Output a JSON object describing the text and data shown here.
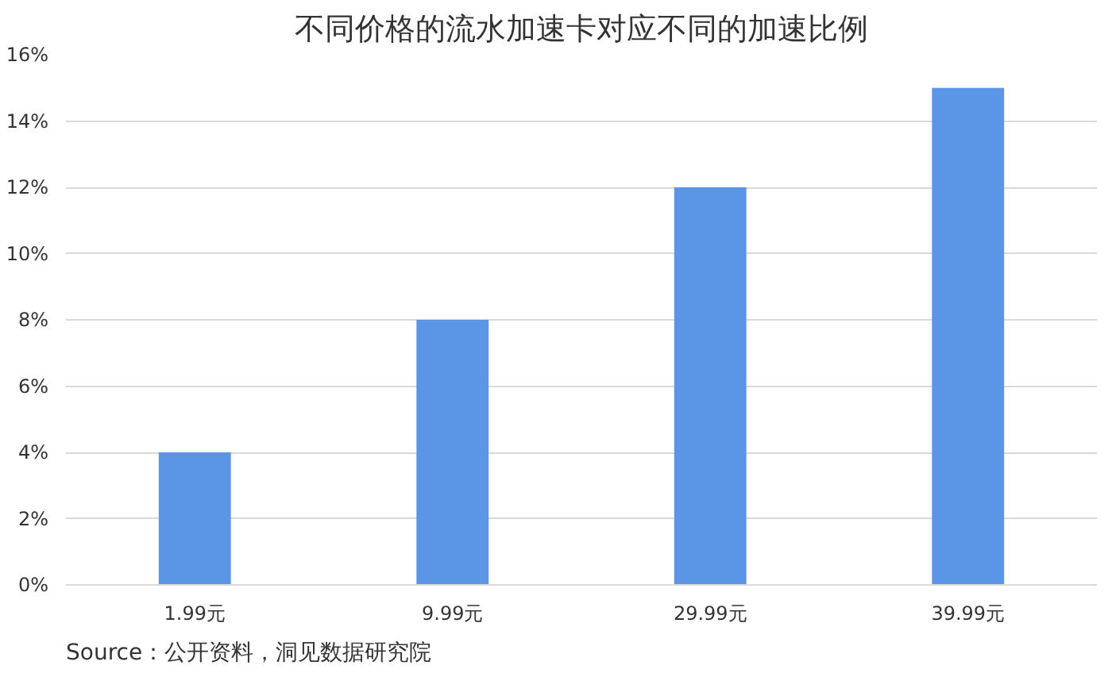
{
  "chart_data": {
    "type": "bar",
    "title": "不同价格的流水加速卡对应不同的加速比例",
    "categories": [
      "1.99元",
      "9.99元",
      "29.99元",
      "39.99元"
    ],
    "values": [
      4,
      8,
      12,
      15
    ],
    "color": "#5b95e5",
    "ylim": [
      0,
      16
    ],
    "yticks": [
      {
        "value": 0,
        "label": "0%"
      },
      {
        "value": 2,
        "label": "2%"
      },
      {
        "value": 4,
        "label": "4%"
      },
      {
        "value": 6,
        "label": "6%"
      },
      {
        "value": 8,
        "label": "8%"
      },
      {
        "value": 10,
        "label": "10%"
      },
      {
        "value": 12,
        "label": "12%"
      },
      {
        "value": 14,
        "label": "14%"
      },
      {
        "value": 16,
        "label": "16%"
      }
    ],
    "grid": "y",
    "annotations": [
      "Source：公开资料，洞见数据研究院"
    ]
  }
}
